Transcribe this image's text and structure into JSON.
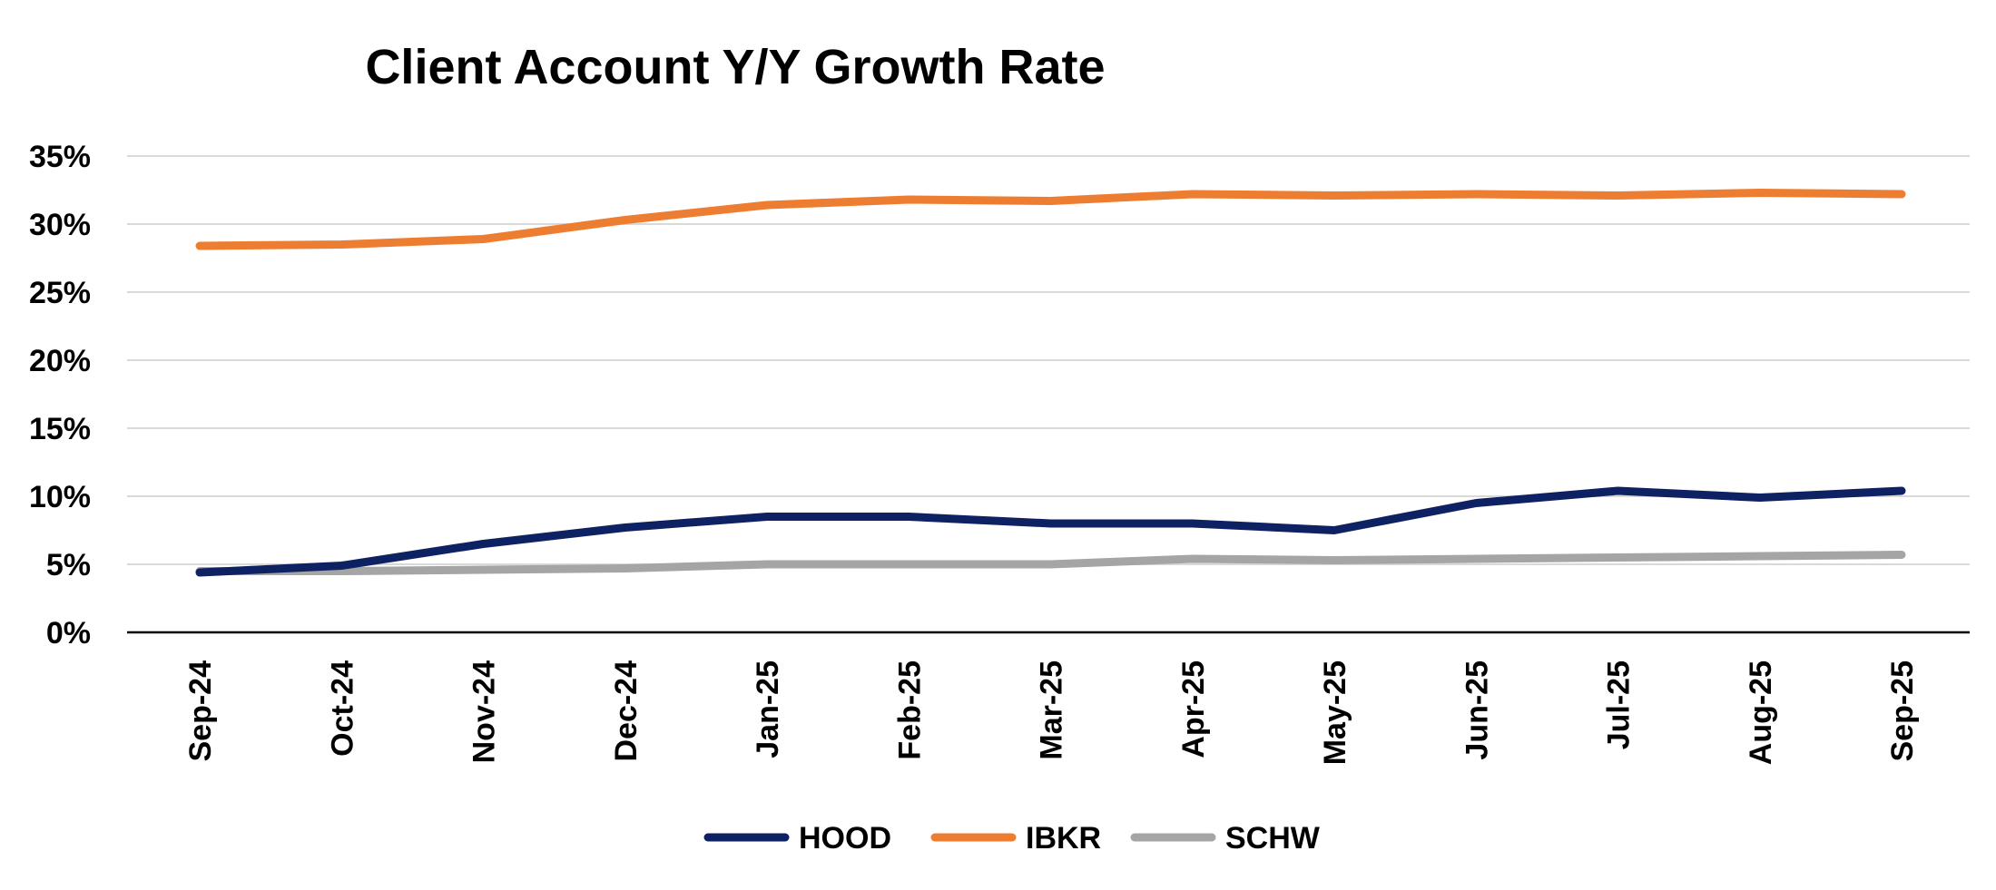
{
  "chart_data": {
    "type": "line",
    "title": "Client Account Y/Y Growth Rate",
    "xlabel": "",
    "ylabel": "",
    "ylim": [
      0,
      35
    ],
    "yticks": [
      0,
      5,
      10,
      15,
      20,
      25,
      30,
      35
    ],
    "ytick_labels": [
      "0%",
      "5%",
      "10%",
      "15%",
      "20%",
      "25%",
      "30%",
      "35%"
    ],
    "categories": [
      "Sep-24",
      "Oct-24",
      "Nov-24",
      "Dec-24",
      "Jan-25",
      "Feb-25",
      "Mar-25",
      "Apr-25",
      "May-25",
      "Jun-25",
      "Jul-25",
      "Aug-25",
      "Sep-25"
    ],
    "grid": true,
    "legend_position": "bottom-center",
    "series": [
      {
        "name": "HOOD",
        "color": "#0e2263",
        "values": [
          4.4,
          4.9,
          6.5,
          7.7,
          8.5,
          8.5,
          8.0,
          8.0,
          7.5,
          9.5,
          10.4,
          9.9,
          10.4
        ]
      },
      {
        "name": "IBKR",
        "color": "#ed7d31",
        "values": [
          28.4,
          28.5,
          28.9,
          30.3,
          31.4,
          31.8,
          31.7,
          32.2,
          32.1,
          32.2,
          32.1,
          32.3,
          32.2
        ]
      },
      {
        "name": "SCHW",
        "color": "#a5a5a5",
        "values": [
          4.5,
          4.5,
          4.6,
          4.7,
          5.0,
          5.0,
          5.0,
          5.4,
          5.3,
          5.4,
          5.5,
          5.6,
          5.7
        ]
      }
    ]
  }
}
